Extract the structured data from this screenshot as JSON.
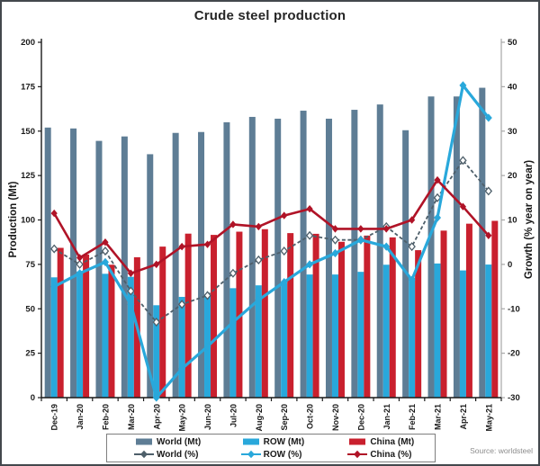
{
  "title": "Crude steel production",
  "source": "Source: worldsteel",
  "colors": {
    "frame": "#43484d",
    "axis_left": "#1a1a1a",
    "axis_right": "#a6a6a6",
    "tick_label": "#1a1a1a",
    "legend_border": "#7f7f7f",
    "source_text": "#8c8c8c"
  },
  "chart_data": {
    "type": "bar+line combo",
    "title": "Crude steel production",
    "categories": [
      "Dec-19",
      "Jan-20",
      "Feb-20",
      "Mar-20",
      "Apr-20",
      "May-20",
      "Jun-20",
      "Jul-20",
      "Aug-20",
      "Sep-20",
      "Oct-20",
      "Nov-20",
      "Dec-20",
      "Jan-21",
      "Feb-21",
      "Mar-21",
      "Apr-21",
      "May-21"
    ],
    "y_left": {
      "label": "Production (Mt)",
      "min": 0,
      "max": 200,
      "ticks": [
        0,
        25,
        50,
        75,
        100,
        125,
        150,
        175,
        200
      ]
    },
    "y_right": {
      "label": "Growth (% year on year)",
      "min": -30,
      "max": 50,
      "ticks": [
        -30,
        -20,
        -10,
        0,
        10,
        20,
        30,
        40,
        50
      ]
    },
    "grid": false,
    "legend_position": "bottom",
    "series": [
      {
        "name": "World (Mt)",
        "type": "bar",
        "axis": "left",
        "color": "#5e7d95",
        "values": [
          152,
          151.5,
          144.5,
          147,
          137,
          149,
          149.5,
          155,
          158,
          157,
          161.5,
          157,
          162,
          165,
          150.5,
          169.5,
          169.5,
          174.4
        ]
      },
      {
        "name": "ROW (Mt)",
        "type": "bar",
        "axis": "left",
        "color": "#29a8db",
        "values": [
          67.7,
          71,
          69.7,
          68,
          52,
          56.7,
          57.9,
          61.6,
          63.2,
          64.4,
          69.3,
          69.3,
          70.8,
          74.8,
          67.5,
          75.5,
          71.6,
          74.9
        ]
      },
      {
        "name": "China (Mt)",
        "type": "bar",
        "axis": "left",
        "color": "#c9202e",
        "values": [
          84.3,
          80.5,
          74.8,
          79,
          85,
          92.3,
          91.6,
          93.4,
          94.8,
          92.6,
          92.2,
          87.7,
          91.2,
          90.2,
          83,
          94,
          97.9,
          99.5
        ]
      },
      {
        "name": "World (%)",
        "type": "line",
        "axis": "right",
        "color": "#4e5f6a",
        "dash": "4 2.5",
        "width": 1.8,
        "marker": "diamond-open",
        "marker_size": 3.4,
        "values": [
          3.5,
          0,
          3,
          -6,
          -13,
          -9,
          -7,
          -2,
          1,
          3,
          6.5,
          5.5,
          5.5,
          8.5,
          4,
          15,
          23.4,
          16.5
        ]
      },
      {
        "name": "ROW (%)",
        "type": "line",
        "axis": "right",
        "color": "#29a8db",
        "dash": "",
        "width": 3.2,
        "marker": "diamond",
        "marker_size": 4,
        "values": [
          -5,
          -2,
          0.5,
          -9,
          -30,
          -23.5,
          -18.5,
          -13,
          -8,
          -4,
          0,
          2.5,
          5.5,
          4,
          -3.5,
          10.5,
          40.3,
          33
        ]
      },
      {
        "name": "China (%)",
        "type": "line",
        "axis": "right",
        "color": "#b01327",
        "dash": "",
        "width": 2.6,
        "marker": "diamond",
        "marker_size": 3.6,
        "values": [
          11.5,
          1.5,
          5,
          -2,
          0,
          4,
          4.5,
          9,
          8.5,
          11,
          12.5,
          8,
          8,
          8,
          10,
          19,
          13,
          6.5
        ]
      }
    ]
  },
  "legend": [
    {
      "label": "World (Mt)",
      "swatch": "bar",
      "color": "#5e7d95"
    },
    {
      "label": "ROW (Mt)",
      "swatch": "bar",
      "color": "#29a8db"
    },
    {
      "label": "China (Mt)",
      "swatch": "bar",
      "color": "#c9202e"
    },
    {
      "label": "World (%)",
      "swatch": "line",
      "color": "#4e5f6a"
    },
    {
      "label": "ROW (%)",
      "swatch": "line",
      "color": "#29a8db"
    },
    {
      "label": "China (%)",
      "swatch": "line",
      "color": "#b01327"
    }
  ]
}
